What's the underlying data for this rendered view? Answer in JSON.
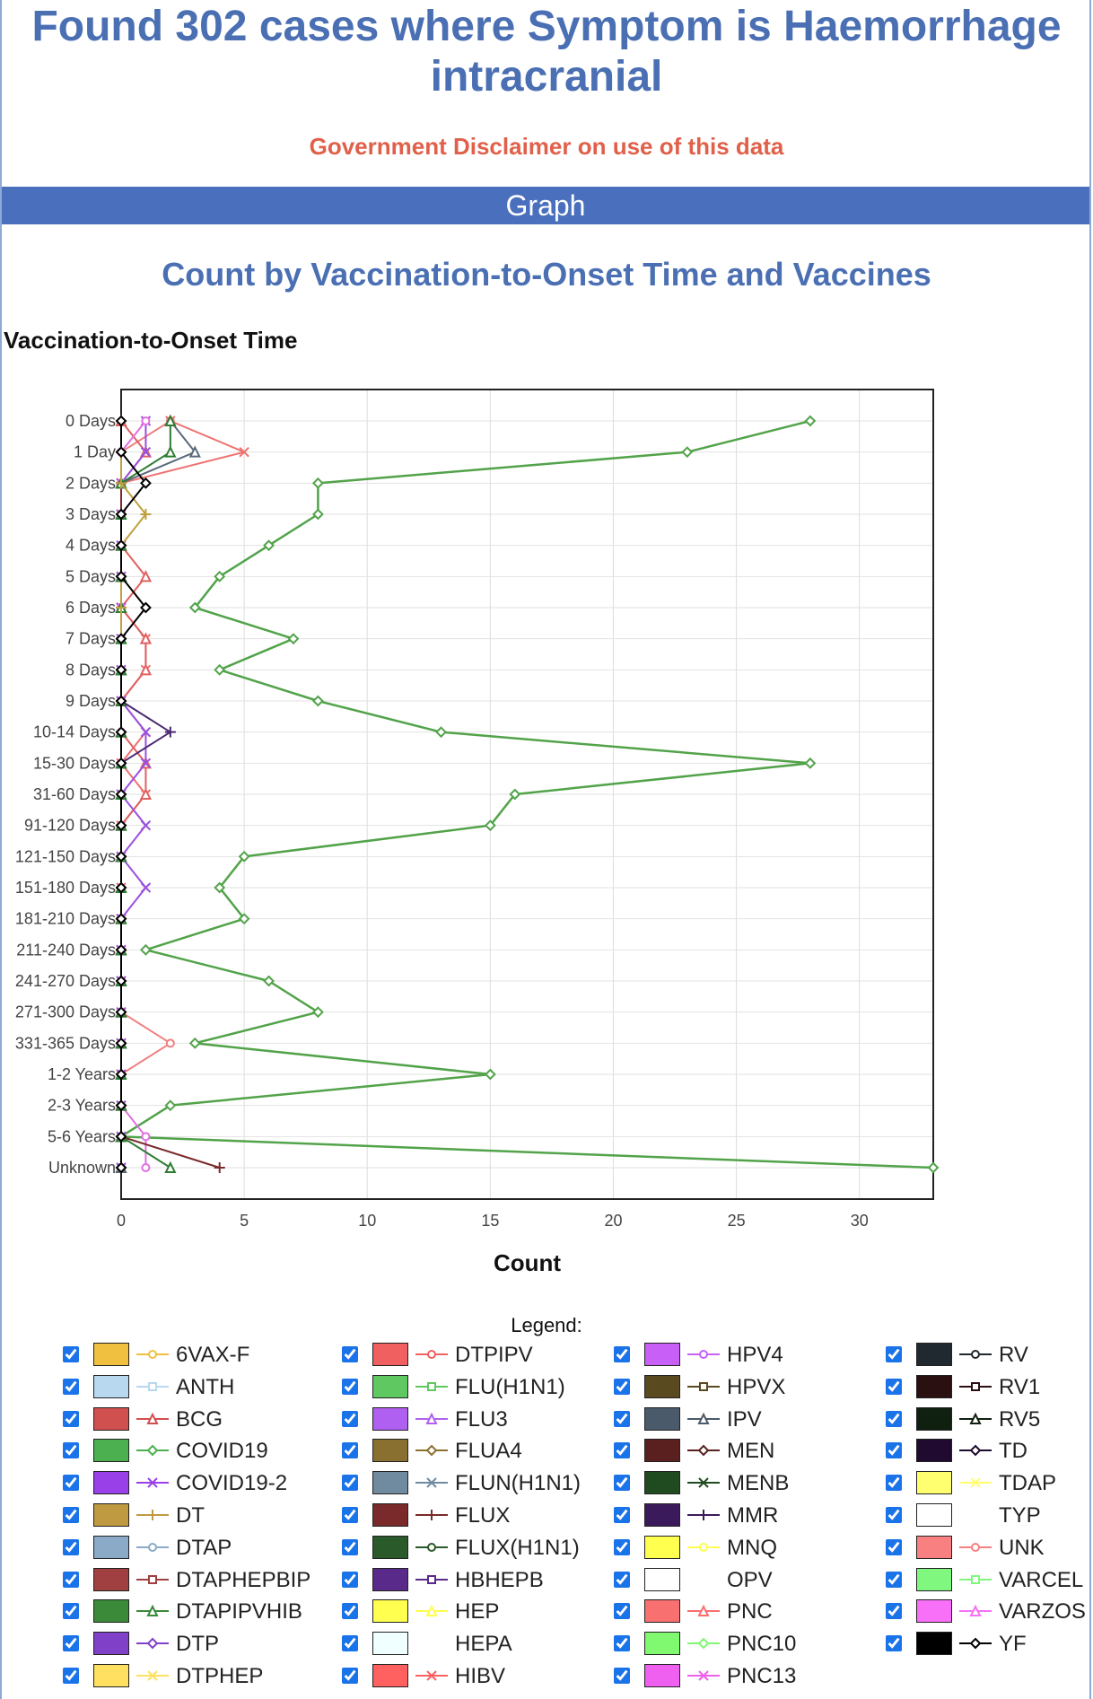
{
  "header": {
    "title": "Found 302 cases where Symptom is Haemorrhage intracranial",
    "disclaimer": "Government Disclaimer on use of this data",
    "graph_bar": "Graph"
  },
  "legend_title": "Legend:",
  "chart_data": {
    "type": "line",
    "orientation": "horizontal",
    "title": "Count by Vaccination-to-Onset Time and Vaccines",
    "ylabel": "Vaccination-to-Onset Time",
    "xlabel": "Count",
    "xlim": [
      0,
      33
    ],
    "xticks": [
      0,
      5,
      10,
      15,
      20,
      25,
      30
    ],
    "grid": true,
    "categories": [
      "0 Days",
      "1 Day",
      "2 Days",
      "3 Days",
      "4 Days",
      "5 Days",
      "6 Days",
      "7 Days",
      "8 Days",
      "9 Days",
      "10-14 Days",
      "15-30 Days",
      "31-60 Days",
      "91-120 Days",
      "121-150 Days",
      "151-180 Days",
      "181-210 Days",
      "211-240 Days",
      "241-270 Days",
      "271-300 Days",
      "331-365 Days",
      "1-2 Years",
      "2-3 Years",
      "5-6 Years",
      "Unknown"
    ],
    "series": [
      {
        "name": "COVID19",
        "color": "#52a34a",
        "marker": "diamond",
        "values": [
          28,
          23,
          8,
          8,
          6,
          4,
          3,
          7,
          4,
          8,
          13,
          28,
          16,
          15,
          5,
          4,
          5,
          1,
          6,
          8,
          3,
          15,
          2,
          0,
          33
        ]
      },
      {
        "name": "DTPIPV",
        "color": "#f08080",
        "marker": "circle",
        "values": [
          2,
          0,
          0,
          0,
          0,
          0,
          0,
          0,
          0,
          0,
          0,
          0,
          0,
          0,
          0,
          0,
          0,
          0,
          0,
          0,
          2,
          0,
          0,
          0,
          0
        ]
      },
      {
        "name": "HIBV",
        "color": "#f07070",
        "marker": "x",
        "values": [
          2,
          5,
          0,
          0,
          0,
          0,
          0,
          1,
          1,
          0,
          1,
          0,
          1,
          0,
          0,
          0,
          0,
          0,
          0,
          0,
          0,
          0,
          0,
          0,
          0
        ]
      },
      {
        "name": "BCG",
        "color": "#e06060",
        "marker": "triangle",
        "values": [
          0,
          1,
          0,
          0,
          0,
          1,
          0,
          1,
          1,
          0,
          0,
          1,
          1,
          0,
          0,
          0,
          0,
          0,
          0,
          0,
          0,
          0,
          0,
          0,
          0
        ]
      },
      {
        "name": "COVID19-2",
        "color": "#9a50e0",
        "marker": "x",
        "values": [
          1,
          1,
          0,
          0,
          0,
          0,
          0,
          0,
          0,
          0,
          1,
          1,
          0,
          1,
          0,
          1,
          0,
          0,
          0,
          0,
          0,
          0,
          0,
          0,
          0
        ]
      },
      {
        "name": "HPV4",
        "color": "#e070e0",
        "marker": "circle",
        "values": [
          1,
          0,
          0,
          0,
          0,
          0,
          0,
          0,
          0,
          0,
          0,
          0,
          0,
          0,
          0,
          0,
          0,
          0,
          0,
          0,
          0,
          0,
          0,
          1,
          1
        ]
      },
      {
        "name": "IPV",
        "color": "#5a6a7a",
        "marker": "triangle",
        "values": [
          2,
          3,
          0,
          0,
          0,
          0,
          0,
          0,
          0,
          0,
          0,
          0,
          0,
          0,
          0,
          0,
          0,
          0,
          0,
          0,
          0,
          0,
          0,
          0,
          0
        ]
      },
      {
        "name": "DTAPIPVHIB",
        "color": "#2e7d32",
        "marker": "triangle",
        "values": [
          2,
          2,
          0,
          0,
          0,
          0,
          0,
          0,
          0,
          0,
          0,
          0,
          0,
          0,
          0,
          0,
          0,
          0,
          0,
          0,
          0,
          0,
          0,
          0,
          2
        ]
      },
      {
        "name": "MMR",
        "color": "#4a2a70",
        "marker": "plus",
        "values": [
          0,
          0,
          0,
          0,
          0,
          0,
          0,
          0,
          0,
          0,
          2,
          0,
          0,
          0,
          0,
          0,
          0,
          0,
          0,
          0,
          0,
          0,
          0,
          0,
          0
        ]
      },
      {
        "name": "FLUX",
        "color": "#7a2a2a",
        "marker": "plus",
        "values": [
          0,
          0,
          0,
          0,
          0,
          0,
          0,
          0,
          0,
          0,
          0,
          0,
          0,
          0,
          0,
          0,
          0,
          0,
          0,
          0,
          0,
          0,
          0,
          0,
          4
        ]
      },
      {
        "name": "DT",
        "color": "#c0a040",
        "marker": "plus",
        "values": [
          0,
          0,
          0,
          1,
          0,
          0,
          0,
          0,
          0,
          0,
          0,
          0,
          0,
          0,
          0,
          0,
          0,
          0,
          0,
          0,
          0,
          0,
          0,
          0,
          0
        ]
      },
      {
        "name": "YF",
        "color": "#000000",
        "marker": "diamond",
        "values": [
          0,
          0,
          1,
          0,
          0,
          0,
          1,
          0,
          0,
          0,
          0,
          0,
          0,
          0,
          0,
          0,
          0,
          0,
          0,
          0,
          0,
          0,
          0,
          0,
          0
        ]
      }
    ]
  },
  "legend": {
    "items": [
      {
        "name": "6VAX-F",
        "color": "#f0c040",
        "marker": "circle",
        "checked": true
      },
      {
        "name": "ANTH",
        "color": "#b8d8f0",
        "marker": "square",
        "checked": true
      },
      {
        "name": "BCG",
        "color": "#d05050",
        "marker": "triangle",
        "checked": true
      },
      {
        "name": "COVID19",
        "color": "#4caf50",
        "marker": "diamond",
        "checked": true
      },
      {
        "name": "COVID19-2",
        "color": "#9a40e8",
        "marker": "x",
        "checked": true
      },
      {
        "name": "DT",
        "color": "#c09a40",
        "marker": "plus",
        "checked": true
      },
      {
        "name": "DTAP",
        "color": "#8aaac8",
        "marker": "circle",
        "checked": true
      },
      {
        "name": "DTAPHEPBIP",
        "color": "#a04040",
        "marker": "square",
        "checked": true
      },
      {
        "name": "DTAPIPVHIB",
        "color": "#3a8a3a",
        "marker": "triangle",
        "checked": true
      },
      {
        "name": "DTP",
        "color": "#8040c8",
        "marker": "diamond",
        "checked": true
      },
      {
        "name": "DTPHEP",
        "color": "#ffe060",
        "marker": "x",
        "checked": true
      },
      {
        "name": "DTPIPV",
        "color": "#f06060",
        "marker": "circle",
        "checked": true
      },
      {
        "name": "FLU(H1N1)",
        "color": "#60c860",
        "marker": "square",
        "checked": true
      },
      {
        "name": "FLU3",
        "color": "#b060f0",
        "marker": "triangle",
        "checked": true
      },
      {
        "name": "FLUA4",
        "color": "#8a7030",
        "marker": "diamond",
        "checked": true
      },
      {
        "name": "FLUN(H1N1)",
        "color": "#708aa0",
        "marker": "x",
        "checked": true
      },
      {
        "name": "FLUX",
        "color": "#7a2a2a",
        "marker": "plus",
        "checked": true
      },
      {
        "name": "FLUX(H1N1)",
        "color": "#2a5a2a",
        "marker": "circle",
        "checked": true
      },
      {
        "name": "HBHEPB",
        "color": "#5a2a8a",
        "marker": "square",
        "checked": true
      },
      {
        "name": "HEP",
        "color": "#ffff50",
        "marker": "triangle",
        "checked": true
      },
      {
        "name": "HEPA",
        "color": "#f0ffff",
        "marker": "none",
        "checked": true
      },
      {
        "name": "HIBV",
        "color": "#ff6060",
        "marker": "x",
        "checked": true
      },
      {
        "name": "HPV4",
        "color": "#c860f8",
        "marker": "circle",
        "checked": true
      },
      {
        "name": "HPVX",
        "color": "#5a4a20",
        "marker": "square",
        "checked": true
      },
      {
        "name": "IPV",
        "color": "#4a5a6a",
        "marker": "triangle",
        "checked": true
      },
      {
        "name": "MEN",
        "color": "#5a2020",
        "marker": "diamond",
        "checked": true
      },
      {
        "name": "MENB",
        "color": "#204a20",
        "marker": "x",
        "checked": true
      },
      {
        "name": "MMR",
        "color": "#3a1a5a",
        "marker": "plus",
        "checked": true
      },
      {
        "name": "MNQ",
        "color": "#ffff50",
        "marker": "circle",
        "checked": true
      },
      {
        "name": "OPV",
        "color": "#ffffff",
        "marker": "none",
        "checked": true
      },
      {
        "name": "PNC",
        "color": "#f87070",
        "marker": "triangle",
        "checked": true
      },
      {
        "name": "PNC10",
        "color": "#80f870",
        "marker": "diamond",
        "checked": true
      },
      {
        "name": "PNC13",
        "color": "#f060f0",
        "marker": "x",
        "checked": true
      },
      {
        "name": "RV",
        "color": "#202830",
        "marker": "circle",
        "checked": true
      },
      {
        "name": "RV1",
        "color": "#2a1010",
        "marker": "square",
        "checked": true
      },
      {
        "name": "RV5",
        "color": "#102010",
        "marker": "triangle",
        "checked": true
      },
      {
        "name": "TD",
        "color": "#200a30",
        "marker": "diamond",
        "checked": true
      },
      {
        "name": "TDAP",
        "color": "#ffff70",
        "marker": "x",
        "checked": true
      },
      {
        "name": "TYP",
        "color": "#ffffff",
        "marker": "none",
        "checked": true
      },
      {
        "name": "UNK",
        "color": "#f88080",
        "marker": "circle",
        "checked": true
      },
      {
        "name": "VARCEL",
        "color": "#80f880",
        "marker": "square",
        "checked": true
      },
      {
        "name": "VARZOS",
        "color": "#f870f8",
        "marker": "triangle",
        "checked": true
      },
      {
        "name": "YF",
        "color": "#000000",
        "marker": "diamond",
        "checked": true
      }
    ]
  }
}
